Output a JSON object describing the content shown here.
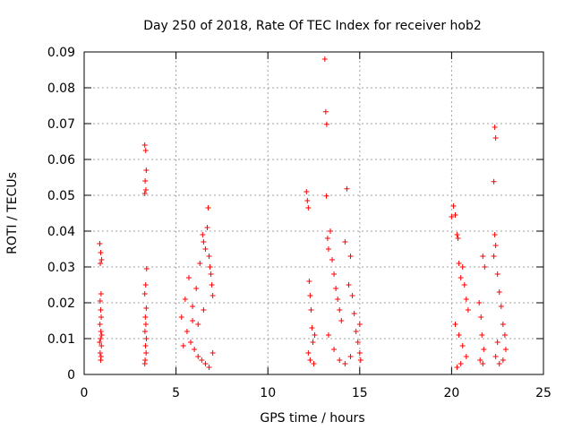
{
  "chart_data": {
    "type": "scatter",
    "title": "Day 250 of 2018, Rate Of TEC Index for receiver hob2",
    "xlabel": "GPS time / hours",
    "ylabel": "ROTI / TECUs",
    "xlim": [
      0,
      25
    ],
    "ylim": [
      0,
      0.09
    ],
    "xticks": [
      0,
      5,
      10,
      15,
      20,
      25
    ],
    "yticks": [
      0,
      0.01,
      0.02,
      0.03,
      0.04,
      0.05,
      0.06,
      0.07,
      0.08,
      0.09
    ],
    "xtick_labels": [
      "0",
      "5",
      "10",
      "15",
      "20",
      "25"
    ],
    "ytick_labels": [
      "0",
      "0.01",
      "0.02",
      "0.03",
      "0.04",
      "0.05",
      "0.06",
      "0.07",
      "0.08",
      "0.09"
    ],
    "grid": true,
    "marker": "+",
    "marker_color": "#ff0000",
    "series": [
      {
        "points": [
          [
            0.85,
            0.0365
          ],
          [
            0.9,
            0.034
          ],
          [
            0.95,
            0.032
          ],
          [
            0.88,
            0.031
          ],
          [
            0.92,
            0.0225
          ],
          [
            0.87,
            0.0205
          ],
          [
            0.9,
            0.018
          ],
          [
            0.93,
            0.016
          ],
          [
            0.86,
            0.014
          ],
          [
            0.91,
            0.012
          ],
          [
            0.89,
            0.01
          ],
          [
            0.94,
            0.008
          ],
          [
            0.87,
            0.006
          ],
          [
            0.92,
            0.005
          ],
          [
            0.9,
            0.004
          ],
          [
            0.96,
            0.011
          ],
          [
            0.84,
            0.009
          ],
          [
            3.3,
            0.064
          ],
          [
            3.35,
            0.0625
          ],
          [
            3.38,
            0.057
          ],
          [
            3.32,
            0.054
          ],
          [
            3.36,
            0.0515
          ],
          [
            3.3,
            0.0505
          ],
          [
            3.4,
            0.0295
          ],
          [
            3.35,
            0.025
          ],
          [
            3.3,
            0.0225
          ],
          [
            3.38,
            0.0185
          ],
          [
            3.33,
            0.016
          ],
          [
            3.36,
            0.014
          ],
          [
            3.31,
            0.012
          ],
          [
            3.39,
            0.01
          ],
          [
            3.34,
            0.008
          ],
          [
            3.37,
            0.006
          ],
          [
            3.32,
            0.004
          ],
          [
            3.3,
            0.003
          ],
          [
            5.3,
            0.016
          ],
          [
            5.5,
            0.021
          ],
          [
            5.7,
            0.027
          ],
          [
            5.9,
            0.019
          ],
          [
            6.1,
            0.024
          ],
          [
            6.3,
            0.031
          ],
          [
            6.45,
            0.039
          ],
          [
            6.5,
            0.037
          ],
          [
            6.6,
            0.035
          ],
          [
            6.7,
            0.041
          ],
          [
            6.75,
            0.0465
          ],
          [
            6.8,
            0.033
          ],
          [
            6.85,
            0.03
          ],
          [
            6.9,
            0.028
          ],
          [
            6.95,
            0.025
          ],
          [
            7.0,
            0.022
          ],
          [
            5.6,
            0.012
          ],
          [
            5.8,
            0.009
          ],
          [
            6.0,
            0.007
          ],
          [
            6.2,
            0.005
          ],
          [
            6.4,
            0.004
          ],
          [
            6.6,
            0.003
          ],
          [
            6.8,
            0.002
          ],
          [
            5.4,
            0.008
          ],
          [
            7.0,
            0.006
          ],
          [
            6.2,
            0.014
          ],
          [
            6.5,
            0.018
          ],
          [
            5.9,
            0.015
          ],
          [
            12.1,
            0.051
          ],
          [
            12.15,
            0.0485
          ],
          [
            12.2,
            0.0465
          ],
          [
            12.25,
            0.026
          ],
          [
            12.3,
            0.022
          ],
          [
            12.35,
            0.018
          ],
          [
            12.4,
            0.013
          ],
          [
            12.45,
            0.009
          ],
          [
            12.2,
            0.006
          ],
          [
            12.3,
            0.004
          ],
          [
            12.5,
            0.003
          ],
          [
            12.55,
            0.011
          ],
          [
            13.1,
            0.088
          ],
          [
            13.15,
            0.0733
          ],
          [
            13.2,
            0.0698
          ],
          [
            13.18,
            0.0498
          ],
          [
            13.25,
            0.038
          ],
          [
            13.3,
            0.035
          ],
          [
            13.4,
            0.04
          ],
          [
            13.5,
            0.032
          ],
          [
            13.6,
            0.028
          ],
          [
            13.7,
            0.024
          ],
          [
            13.8,
            0.021
          ],
          [
            13.9,
            0.018
          ],
          [
            14.0,
            0.015
          ],
          [
            14.2,
            0.037
          ],
          [
            14.3,
            0.0518
          ],
          [
            14.4,
            0.025
          ],
          [
            14.5,
            0.033
          ],
          [
            14.6,
            0.022
          ],
          [
            14.7,
            0.017
          ],
          [
            14.8,
            0.012
          ],
          [
            14.9,
            0.009
          ],
          [
            15.0,
            0.006
          ],
          [
            15.05,
            0.004
          ],
          [
            13.3,
            0.011
          ],
          [
            13.6,
            0.007
          ],
          [
            13.9,
            0.004
          ],
          [
            14.2,
            0.003
          ],
          [
            14.5,
            0.005
          ],
          [
            15.0,
            0.014
          ],
          [
            20.0,
            0.044
          ],
          [
            20.1,
            0.047
          ],
          [
            20.2,
            0.0445
          ],
          [
            20.3,
            0.039
          ],
          [
            20.35,
            0.038
          ],
          [
            20.4,
            0.031
          ],
          [
            20.5,
            0.027
          ],
          [
            20.6,
            0.03
          ],
          [
            20.7,
            0.025
          ],
          [
            20.8,
            0.021
          ],
          [
            20.9,
            0.018
          ],
          [
            20.2,
            0.014
          ],
          [
            20.4,
            0.011
          ],
          [
            20.6,
            0.008
          ],
          [
            20.8,
            0.005
          ],
          [
            20.5,
            0.003
          ],
          [
            20.3,
            0.002
          ],
          [
            21.5,
            0.02
          ],
          [
            21.6,
            0.016
          ],
          [
            21.7,
            0.033
          ],
          [
            21.8,
            0.03
          ],
          [
            21.65,
            0.011
          ],
          [
            21.75,
            0.007
          ],
          [
            21.55,
            0.004
          ],
          [
            21.7,
            0.003
          ],
          [
            22.35,
            0.069
          ],
          [
            22.4,
            0.066
          ],
          [
            22.3,
            0.0538
          ],
          [
            22.35,
            0.039
          ],
          [
            22.4,
            0.036
          ],
          [
            22.3,
            0.033
          ],
          [
            22.5,
            0.028
          ],
          [
            22.6,
            0.023
          ],
          [
            22.7,
            0.019
          ],
          [
            22.8,
            0.014
          ],
          [
            22.9,
            0.011
          ],
          [
            22.95,
            0.007
          ],
          [
            22.8,
            0.004
          ],
          [
            22.6,
            0.003
          ],
          [
            22.4,
            0.005
          ],
          [
            22.5,
            0.009
          ]
        ]
      }
    ]
  }
}
